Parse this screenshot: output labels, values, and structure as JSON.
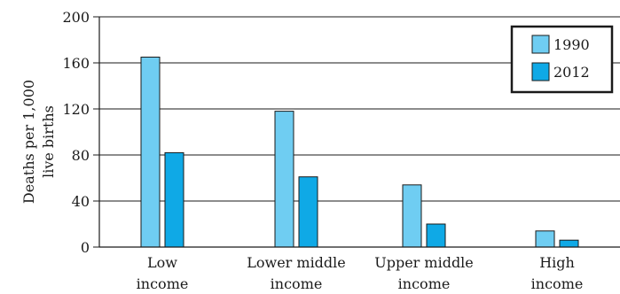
{
  "chart_data": {
    "type": "bar",
    "categories": [
      [
        "Low",
        "income"
      ],
      [
        "Lower middle",
        "income"
      ],
      [
        "Upper middle",
        "income"
      ],
      [
        "High",
        "income"
      ]
    ],
    "series": [
      {
        "name": "1990",
        "values": [
          165,
          118,
          54,
          14
        ],
        "color": "#6fcdf2"
      },
      {
        "name": "2012",
        "values": [
          82,
          61,
          20,
          6
        ],
        "color": "#0fa9e6"
      }
    ],
    "ylabel": [
      "Deaths per 1,000",
      "live births"
    ],
    "ylim": [
      0,
      200
    ],
    "yticks": [
      0,
      40,
      80,
      120,
      160,
      200
    ],
    "grid": true,
    "legend_position": "top-right"
  }
}
